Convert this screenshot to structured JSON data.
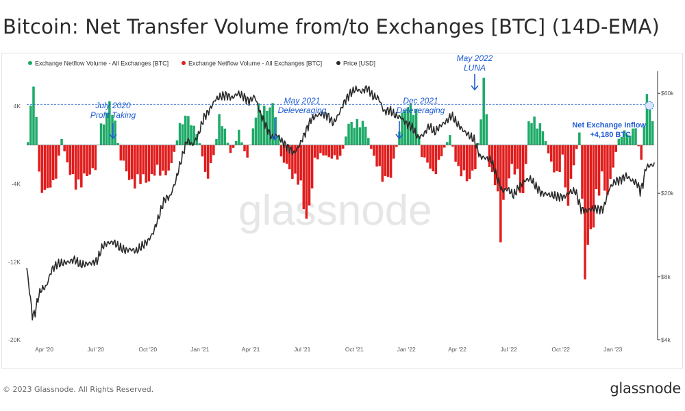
{
  "header": {
    "title": "Bitcoin: Net Transfer Volume from/to Exchanges [BTC] (14D-EMA)"
  },
  "footer": {
    "copyright": "© 2023 Glassnode. All Rights Reserved.",
    "logo": "glassnode"
  },
  "watermark": "glassnode",
  "colors": {
    "inflow": "#1daa67",
    "outflow": "#e01d1d",
    "price": "#2a2a2a",
    "annotation": "#1e5bd6",
    "threshold": "#2e6fd0"
  },
  "chart_data": {
    "type": "bar",
    "legend": [
      {
        "label": "Exchange Netflow Volume - All Exchanges [BTC]",
        "color": "#1daa67"
      },
      {
        "label": "Exchange Netflow Volume - All Exchanges [BTC]",
        "color": "#e01d1d"
      },
      {
        "label": "Price [USD]",
        "color": "#2a2a2a"
      }
    ],
    "legend_position": "top-left",
    "grid": false,
    "x_range": [
      "2020-03-01",
      "2023-03-15"
    ],
    "x_ticks": [
      "Apr '20",
      "Jul '20",
      "Oct '20",
      "Jan '21",
      "Apr '21",
      "Jul '21",
      "Oct '21",
      "Jan '22",
      "Apr '22",
      "Jul '22",
      "Oct '22",
      "Jan '23"
    ],
    "y_left": {
      "min": -20000,
      "max": 8000,
      "ticks": [
        4000,
        -4000,
        -12000,
        -20000
      ],
      "tick_labels": [
        "4K",
        "-4K",
        "-12K",
        "-20K"
      ],
      "scale": "linear"
    },
    "y_right": {
      "min": 4000,
      "max": 80000,
      "ticks": [
        60000,
        20000,
        8000,
        4000
      ],
      "tick_labels": [
        "$60k",
        "$20k",
        "$8k",
        "$4k"
      ],
      "scale": "log"
    },
    "threshold": 4180,
    "netflow_anchors": [
      [
        0,
        300
      ],
      [
        2,
        8000
      ],
      [
        4,
        -3000
      ],
      [
        6,
        -4800
      ],
      [
        9,
        -4500
      ],
      [
        12,
        500
      ],
      [
        15,
        -3200
      ],
      [
        18,
        -3800
      ],
      [
        21,
        -3500
      ],
      [
        24,
        -2000
      ],
      [
        26,
        2000
      ],
      [
        29,
        4200
      ],
      [
        31,
        2000
      ],
      [
        33,
        -1500
      ],
      [
        36,
        -3200
      ],
      [
        39,
        -4000
      ],
      [
        42,
        -3500
      ],
      [
        45,
        -2800
      ],
      [
        48,
        -3000
      ],
      [
        51,
        -2000
      ],
      [
        54,
        2000
      ],
      [
        57,
        2800
      ],
      [
        60,
        1500
      ],
      [
        62,
        -1200
      ],
      [
        64,
        -3500
      ],
      [
        66,
        -1000
      ],
      [
        68,
        2500
      ],
      [
        70,
        1500
      ],
      [
        72,
        -1000
      ],
      [
        75,
        1200
      ],
      [
        78,
        -1500
      ],
      [
        81,
        3000
      ],
      [
        84,
        4000
      ],
      [
        86,
        4200
      ],
      [
        88,
        3000
      ],
      [
        90,
        -1500
      ],
      [
        93,
        -2500
      ],
      [
        96,
        -3500
      ],
      [
        99,
        -8000
      ],
      [
        102,
        -1500
      ],
      [
        105,
        -1000
      ],
      [
        108,
        -1200
      ],
      [
        111,
        -1500
      ],
      [
        114,
        2000
      ],
      [
        117,
        2500
      ],
      [
        120,
        1800
      ],
      [
        123,
        -1500
      ],
      [
        126,
        -3000
      ],
      [
        129,
        -3500
      ],
      [
        132,
        1500
      ],
      [
        134,
        3800
      ],
      [
        136,
        4500
      ],
      [
        138,
        3000
      ],
      [
        140,
        -1000
      ],
      [
        142,
        -2000
      ],
      [
        144,
        -3000
      ],
      [
        147,
        -1000
      ],
      [
        150,
        1000
      ],
      [
        153,
        -2500
      ],
      [
        156,
        -3800
      ],
      [
        159,
        -2000
      ],
      [
        161,
        2500
      ],
      [
        162,
        8800
      ],
      [
        163,
        3000
      ],
      [
        164,
        -2000
      ],
      [
        166,
        -3500
      ],
      [
        168,
        -9500
      ],
      [
        170,
        -4000
      ],
      [
        172,
        -2000
      ],
      [
        174,
        -3500
      ],
      [
        176,
        -5500
      ],
      [
        178,
        2200
      ],
      [
        180,
        2800
      ],
      [
        183,
        1500
      ],
      [
        186,
        -2000
      ],
      [
        188,
        -3500
      ],
      [
        190,
        -1000
      ],
      [
        192,
        -6500
      ],
      [
        194,
        -2000
      ],
      [
        196,
        1000
      ],
      [
        198,
        -12500
      ],
      [
        200,
        -10500
      ],
      [
        202,
        -5000
      ],
      [
        204,
        -3000
      ],
      [
        206,
        -6000
      ],
      [
        208,
        -2000
      ],
      [
        210,
        500
      ],
      [
        212,
        1500
      ],
      [
        214,
        1000
      ],
      [
        216,
        1800
      ],
      [
        218,
        -2000
      ],
      [
        220,
        5800
      ],
      [
        221,
        4000
      ],
      [
        222,
        2000
      ]
    ],
    "price_anchors": [
      [
        0,
        8800
      ],
      [
        1,
        6800
      ],
      [
        2,
        5200
      ],
      [
        3,
        5400
      ],
      [
        4,
        6300
      ],
      [
        5,
        6900
      ],
      [
        7,
        7200
      ],
      [
        9,
        8700
      ],
      [
        11,
        9200
      ],
      [
        13,
        9300
      ],
      [
        15,
        9400
      ],
      [
        17,
        9700
      ],
      [
        19,
        9100
      ],
      [
        21,
        9200
      ],
      [
        23,
        9300
      ],
      [
        25,
        9500
      ],
      [
        27,
        11200
      ],
      [
        29,
        11600
      ],
      [
        31,
        11700
      ],
      [
        33,
        11000
      ],
      [
        35,
        10700
      ],
      [
        37,
        10800
      ],
      [
        39,
        10600
      ],
      [
        41,
        11200
      ],
      [
        43,
        11800
      ],
      [
        45,
        13000
      ],
      [
        47,
        15500
      ],
      [
        49,
        18800
      ],
      [
        51,
        19300
      ],
      [
        53,
        23000
      ],
      [
        55,
        29000
      ],
      [
        57,
        36000
      ],
      [
        59,
        34000
      ],
      [
        61,
        38000
      ],
      [
        63,
        46000
      ],
      [
        65,
        50000
      ],
      [
        67,
        56000
      ],
      [
        69,
        58000
      ],
      [
        71,
        59000
      ],
      [
        73,
        57000
      ],
      [
        75,
        60000
      ],
      [
        77,
        58000
      ],
      [
        79,
        55000
      ],
      [
        81,
        58000
      ],
      [
        83,
        48000
      ],
      [
        85,
        42000
      ],
      [
        87,
        37000
      ],
      [
        89,
        38000
      ],
      [
        91,
        35000
      ],
      [
        93,
        33000
      ],
      [
        95,
        31000
      ],
      [
        97,
        34000
      ],
      [
        99,
        39000
      ],
      [
        101,
        45000
      ],
      [
        103,
        47000
      ],
      [
        105,
        48000
      ],
      [
        107,
        47000
      ],
      [
        109,
        43000
      ],
      [
        111,
        48000
      ],
      [
        113,
        55000
      ],
      [
        115,
        60000
      ],
      [
        117,
        63000
      ],
      [
        119,
        61000
      ],
      [
        121,
        64000
      ],
      [
        123,
        58000
      ],
      [
        125,
        57000
      ],
      [
        127,
        49000
      ],
      [
        129,
        50000
      ],
      [
        131,
        47000
      ],
      [
        133,
        46000
      ],
      [
        135,
        43000
      ],
      [
        137,
        41000
      ],
      [
        139,
        37000
      ],
      [
        141,
        38000
      ],
      [
        143,
        42000
      ],
      [
        145,
        39000
      ],
      [
        147,
        42000
      ],
      [
        149,
        44000
      ],
      [
        151,
        47000
      ],
      [
        153,
        43000
      ],
      [
        155,
        40000
      ],
      [
        157,
        38000
      ],
      [
        159,
        36000
      ],
      [
        161,
        30000
      ],
      [
        163,
        29500
      ],
      [
        165,
        29000
      ],
      [
        167,
        24000
      ],
      [
        169,
        20500
      ],
      [
        171,
        21000
      ],
      [
        173,
        19500
      ],
      [
        175,
        21500
      ],
      [
        177,
        23000
      ],
      [
        179,
        23500
      ],
      [
        181,
        21500
      ],
      [
        183,
        20000
      ],
      [
        185,
        19800
      ],
      [
        187,
        19500
      ],
      [
        189,
        19300
      ],
      [
        191,
        19200
      ],
      [
        193,
        20300
      ],
      [
        195,
        20500
      ],
      [
        197,
        16800
      ],
      [
        199,
        16500
      ],
      [
        201,
        16900
      ],
      [
        203,
        16800
      ],
      [
        205,
        16900
      ],
      [
        207,
        21000
      ],
      [
        209,
        22800
      ],
      [
        211,
        23200
      ],
      [
        213,
        24300
      ],
      [
        215,
        23000
      ],
      [
        217,
        22300
      ],
      [
        218,
        20500
      ],
      [
        219,
        22200
      ],
      [
        220,
        26500
      ],
      [
        221,
        27000
      ],
      [
        222,
        27300
      ]
    ],
    "annotations": [
      {
        "label": "July 2020",
        "label2": "Profit Taking"
      },
      {
        "label": "May 2021",
        "label2": "Deleveraging"
      },
      {
        "label": "Dec 2021",
        "label2": "Deleveraging"
      },
      {
        "label": "May 2022",
        "label2": "LUNA"
      },
      {
        "label": "Net Exchange Inflow",
        "label2": "+4,180 BTC"
      }
    ]
  }
}
